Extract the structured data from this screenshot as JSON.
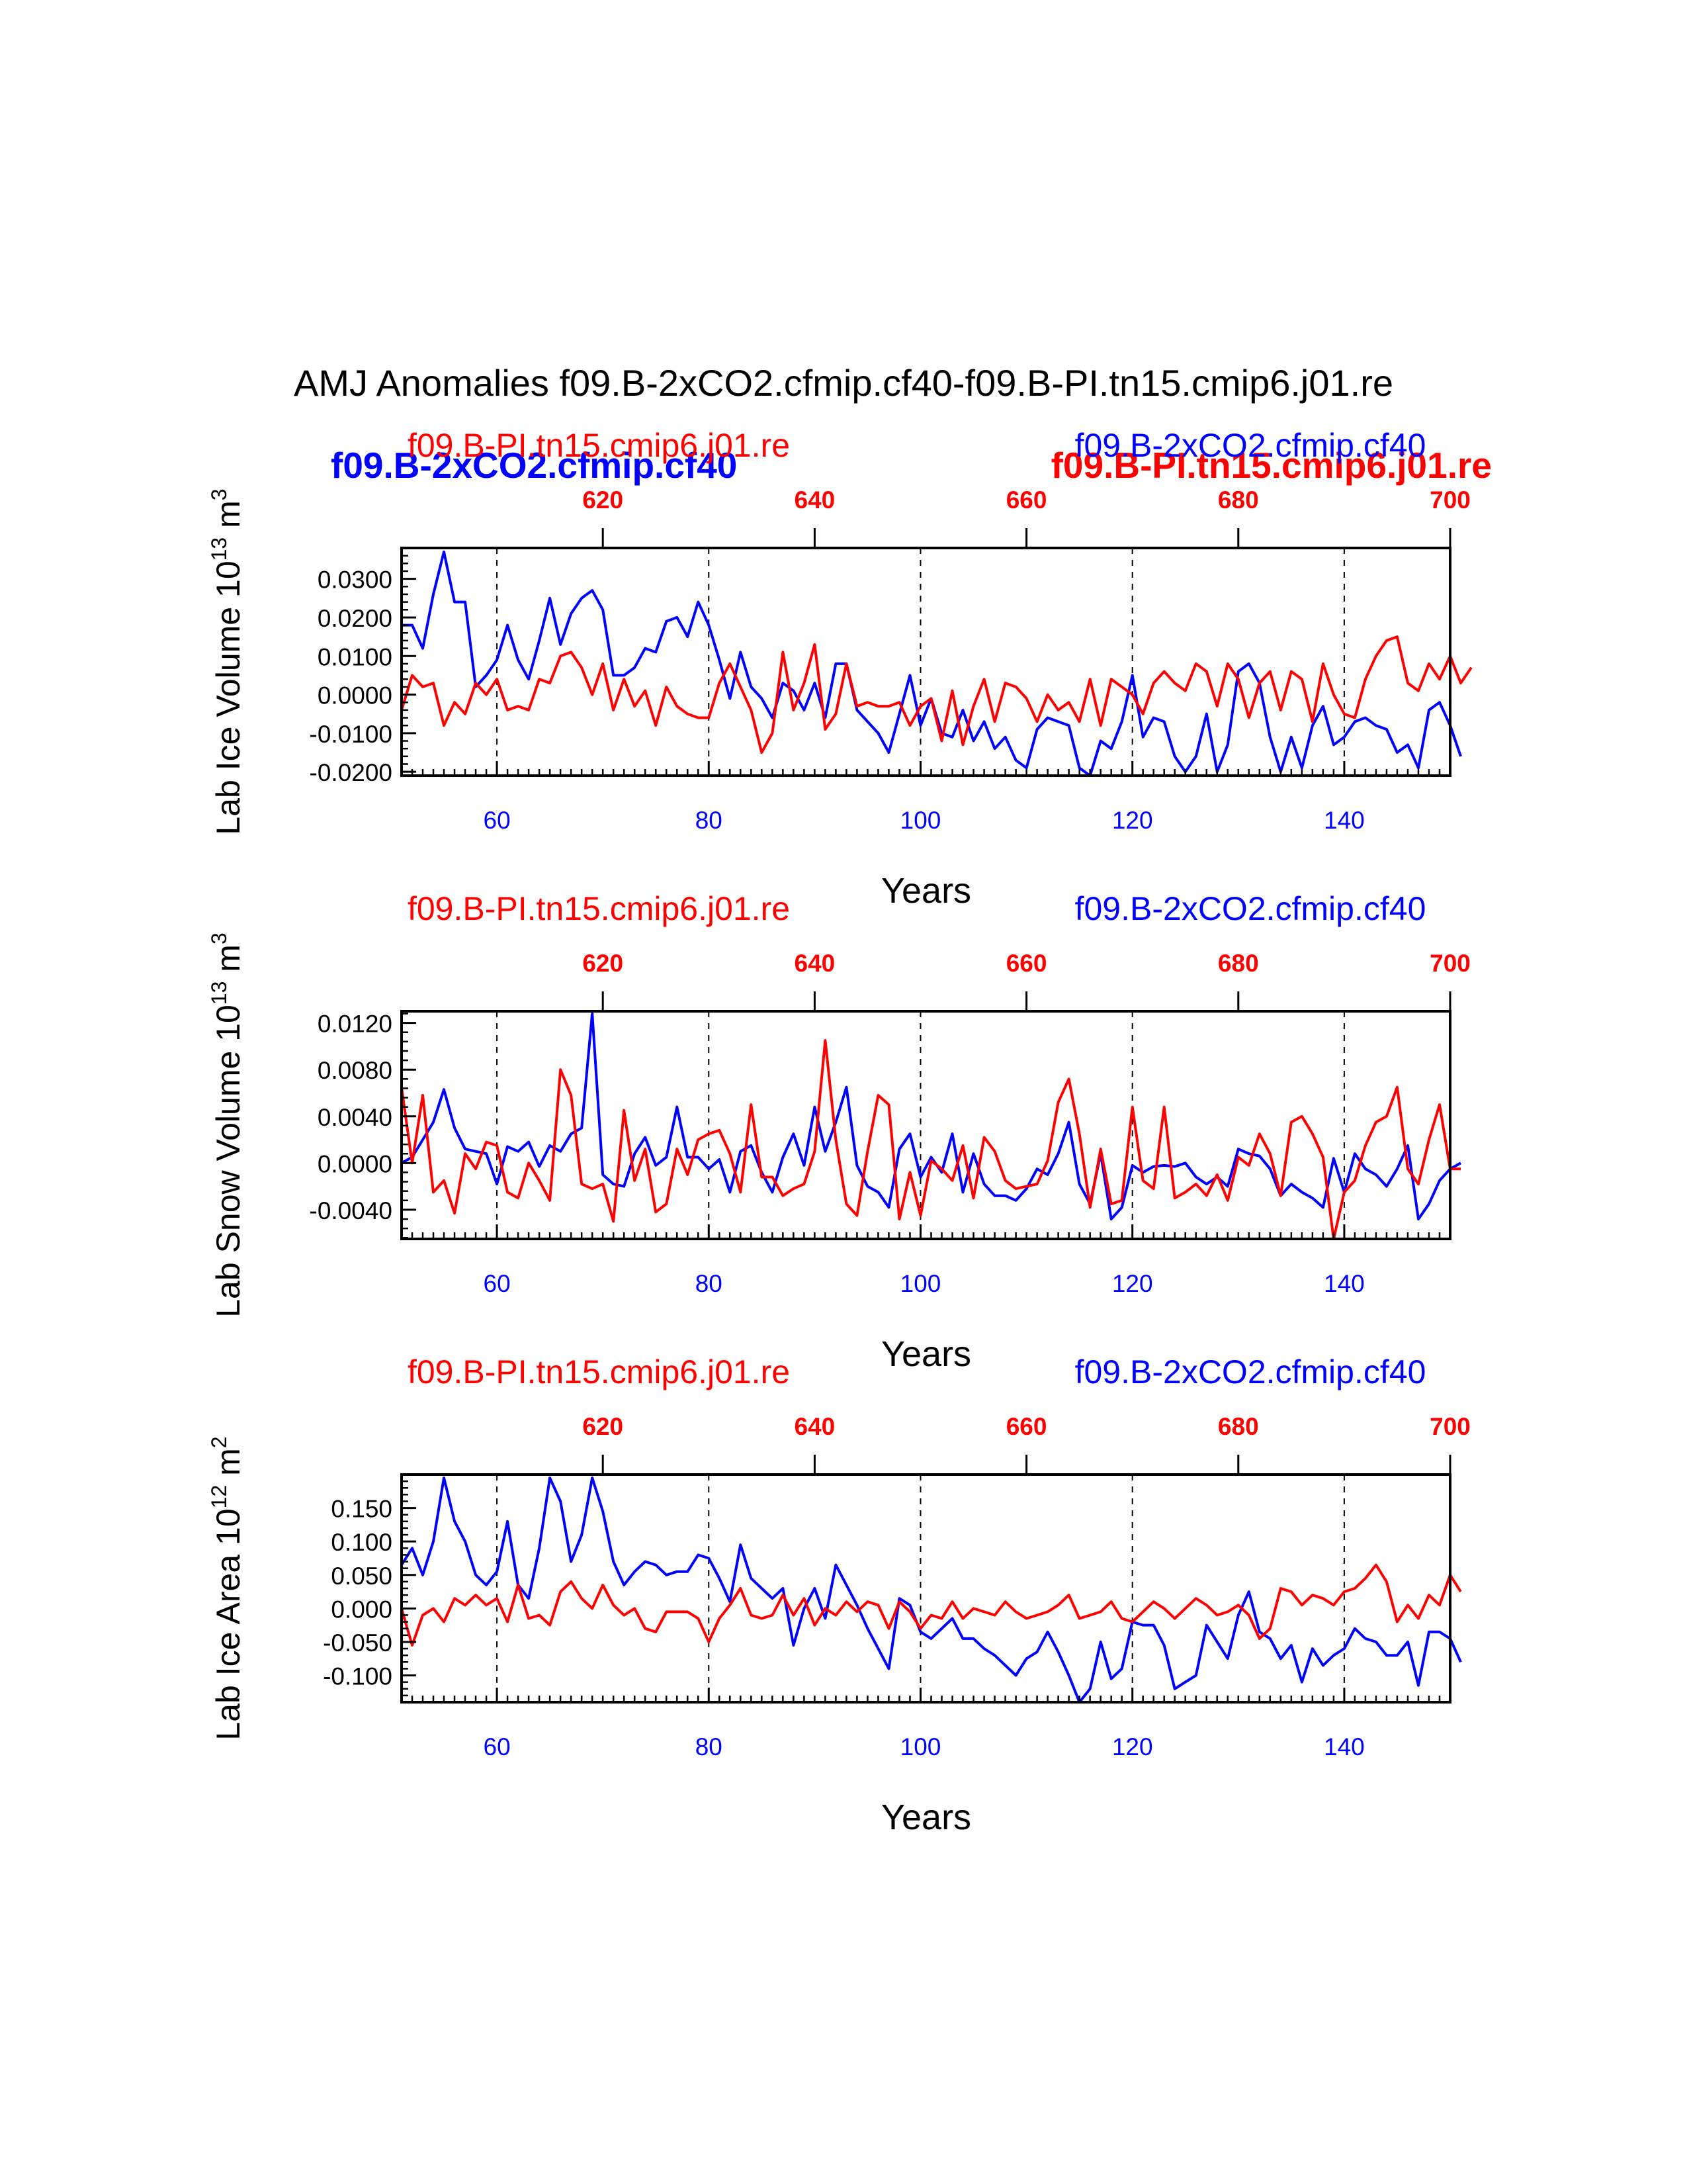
{
  "title": "AMJ Anomalies f09.B-2xCO2.cfmip.cf40-f09.B-PI.tn15.cmip6.j01.re",
  "colors": {
    "blue": "#0000ff",
    "red": "#ff0000",
    "black": "#000000"
  },
  "legend_overlay": {
    "blue": "f09.B-2xCO2.cfmip.cf40",
    "red": "f09.B-PI.tn15.cmip6.j01.re"
  },
  "chart_data": [
    {
      "type": "line",
      "id": "ice_volume",
      "ylabel_main": "Lab Ice Volume 10",
      "ylabel_exp": "13",
      "ylabel_unit": "m",
      "ylabel_unit_exp": "3",
      "xlabel": "Years",
      "subtitle_left": "f09.B-PI.tn15.cmip6.j01.re",
      "subtitle_right": "f09.B-2xCO2.cfmip.cf40",
      "xlim": [
        51,
        150
      ],
      "ylim": [
        -0.021,
        0.038
      ],
      "yticks": [
        -0.02,
        -0.01,
        0.0,
        0.01,
        0.02,
        0.03
      ],
      "yticklabels": [
        "-0.0200",
        "-0.0100",
        "0.0000",
        "0.0100",
        "0.0200",
        "0.0300"
      ],
      "xticks_bottom": [
        60,
        80,
        100,
        120,
        140
      ],
      "xticklabels_bottom": [
        "60",
        "80",
        "100",
        "120",
        "140"
      ],
      "xticks_top": [
        620,
        640,
        660,
        680,
        700
      ],
      "xticklabels_top": [
        "620",
        "640",
        "660",
        "680",
        "700"
      ],
      "top_offset": 550,
      "grid_x": [
        60,
        80,
        100,
        120,
        140
      ],
      "series": [
        {
          "name": "f09.B-2xCO2.cfmip.cf40",
          "color": "blue",
          "x_start": 51,
          "values": [
            0.018,
            0.018,
            0.012,
            0.026,
            0.037,
            0.024,
            0.024,
            0.002,
            0.005,
            0.009,
            0.018,
            0.009,
            0.004,
            0.014,
            0.025,
            0.013,
            0.021,
            0.025,
            0.027,
            0.022,
            0.005,
            0.005,
            0.007,
            0.012,
            0.011,
            0.019,
            0.02,
            0.015,
            0.024,
            0.018,
            0.009,
            -0.001,
            0.011,
            0.002,
            -0.001,
            -0.006,
            0.003,
            0.001,
            -0.004,
            0.003,
            -0.006,
            0.008,
            0.008,
            -0.004,
            -0.007,
            -0.01,
            -0.015,
            -0.005,
            0.005,
            -0.008,
            -0.001,
            -0.01,
            -0.011,
            -0.004,
            -0.012,
            -0.007,
            -0.014,
            -0.011,
            -0.017,
            -0.019,
            -0.009,
            -0.006,
            -0.007,
            -0.008,
            -0.019,
            -0.021,
            -0.012,
            -0.014,
            -0.007,
            0.005,
            -0.011,
            -0.006,
            -0.007,
            -0.016,
            -0.02,
            -0.016,
            -0.005,
            -0.02,
            -0.013,
            0.006,
            0.008,
            0.003,
            -0.011,
            -0.02,
            -0.011,
            -0.019,
            -0.008,
            -0.003,
            -0.013,
            -0.011,
            -0.007,
            -0.006,
            -0.008,
            -0.009,
            -0.015,
            -0.013,
            -0.019,
            -0.004,
            -0.002,
            -0.008,
            -0.016
          ]
        },
        {
          "name": "f09.B-PI.tn15.cmip6.j01.re",
          "color": "red",
          "x_start": 51,
          "values": [
            -0.004,
            0.005,
            0.002,
            0.003,
            -0.008,
            -0.002,
            -0.005,
            0.003,
            0.0,
            0.004,
            -0.004,
            -0.003,
            -0.004,
            0.004,
            0.003,
            0.01,
            0.011,
            0.007,
            0.0,
            0.008,
            -0.004,
            0.004,
            -0.003,
            0.001,
            -0.008,
            0.002,
            -0.003,
            -0.005,
            -0.006,
            -0.006,
            0.003,
            0.008,
            0.002,
            -0.004,
            -0.015,
            -0.01,
            0.011,
            -0.004,
            0.003,
            0.013,
            -0.009,
            -0.005,
            0.008,
            -0.003,
            -0.002,
            -0.003,
            -0.003,
            -0.002,
            -0.008,
            -0.003,
            -0.001,
            -0.012,
            0.001,
            -0.013,
            -0.003,
            0.004,
            -0.007,
            0.003,
            0.002,
            -0.001,
            -0.007,
            0.0,
            -0.004,
            -0.002,
            -0.007,
            0.004,
            -0.008,
            0.004,
            0.002,
            0.0,
            -0.005,
            0.003,
            0.006,
            0.003,
            0.001,
            0.008,
            0.006,
            -0.003,
            0.008,
            0.004,
            -0.006,
            0.003,
            0.006,
            -0.004,
            0.006,
            0.004,
            -0.007,
            0.008,
            0.0,
            -0.005,
            -0.006,
            0.004,
            0.01,
            0.014,
            0.015,
            0.003,
            0.001,
            0.008,
            0.004,
            0.01,
            0.003,
            0.007
          ]
        }
      ]
    },
    {
      "type": "line",
      "id": "snow_volume",
      "ylabel_main": "Lab Snow Volume 10",
      "ylabel_exp": "13",
      "ylabel_unit": "m",
      "ylabel_unit_exp": "3",
      "xlabel": "Years",
      "subtitle_left": "f09.B-PI.tn15.cmip6.j01.re",
      "subtitle_right": "f09.B-2xCO2.cfmip.cf40",
      "xlim": [
        51,
        150
      ],
      "ylim": [
        -0.0065,
        0.013
      ],
      "yticks": [
        -0.004,
        0.0,
        0.004,
        0.008,
        0.012
      ],
      "yticklabels": [
        "-0.0040",
        "0.0000",
        "0.0040",
        "0.0080",
        "0.0120"
      ],
      "xticks_bottom": [
        60,
        80,
        100,
        120,
        140
      ],
      "xticklabels_bottom": [
        "60",
        "80",
        "100",
        "120",
        "140"
      ],
      "xticks_top": [
        620,
        640,
        660,
        680,
        700
      ],
      "xticklabels_top": [
        "620",
        "640",
        "660",
        "680",
        "700"
      ],
      "top_offset": 550,
      "grid_x": [
        60,
        80,
        100,
        120,
        140
      ],
      "series": [
        {
          "name": "f09.B-2xCO2.cfmip.cf40",
          "color": "blue",
          "x_start": 51,
          "values": [
            0.0,
            0.0005,
            0.002,
            0.0035,
            0.0063,
            0.003,
            0.0012,
            0.001,
            0.0008,
            -0.0018,
            0.0014,
            0.001,
            0.0018,
            -0.0003,
            0.0015,
            0.001,
            0.0025,
            0.003,
            0.0128,
            -0.001,
            -0.0018,
            -0.002,
            0.0008,
            0.0022,
            -0.0002,
            0.0005,
            0.0048,
            0.0005,
            0.0005,
            -0.0005,
            0.0003,
            -0.0025,
            0.001,
            0.0015,
            -0.0008,
            -0.0025,
            0.0005,
            0.0025,
            -0.0002,
            0.0048,
            0.001,
            0.0035,
            0.0065,
            -0.0002,
            -0.002,
            -0.0025,
            -0.0038,
            0.0012,
            0.0025,
            -0.0012,
            0.0005,
            -0.0008,
            0.0025,
            -0.0025,
            0.0008,
            -0.0018,
            -0.0028,
            -0.0028,
            -0.0032,
            -0.0022,
            -0.0005,
            -0.001,
            0.0008,
            0.0035,
            -0.0018,
            -0.0035,
            0.0008,
            -0.0048,
            -0.0038,
            -0.0002,
            -0.0008,
            -0.0003,
            -0.0002,
            -0.0003,
            0.0,
            -0.0012,
            -0.0018,
            -0.0012,
            -0.002,
            0.0012,
            0.0008,
            0.0006,
            -0.0005,
            -0.0028,
            -0.0018,
            -0.0025,
            -0.003,
            -0.0038,
            0.0004,
            -0.0025,
            0.0008,
            -0.0005,
            -0.001,
            -0.002,
            -0.0005,
            0.0015,
            -0.0048,
            -0.0035,
            -0.0015,
            -0.0005,
            0.0
          ]
        },
        {
          "name": "f09.B-PI.tn15.cmip6.j01.re",
          "color": "red",
          "x_start": 51,
          "values": [
            0.0065,
            0.0,
            0.0058,
            -0.0025,
            -0.0015,
            -0.0043,
            0.0008,
            -0.0005,
            0.0018,
            0.0015,
            -0.0025,
            -0.003,
            0.0,
            -0.0015,
            -0.0032,
            0.008,
            0.0058,
            -0.0018,
            -0.0022,
            -0.0018,
            -0.005,
            0.0045,
            -0.0015,
            0.0012,
            -0.0042,
            -0.0035,
            0.0012,
            -0.001,
            0.002,
            0.0025,
            0.0028,
            0.0008,
            -0.0025,
            0.005,
            -0.0012,
            -0.0012,
            -0.0028,
            -0.0022,
            -0.0018,
            0.001,
            0.0105,
            0.002,
            -0.0035,
            -0.0045,
            0.001,
            0.0058,
            0.005,
            -0.0048,
            -0.0008,
            -0.0045,
            0.0002,
            -0.0005,
            -0.0015,
            0.0015,
            -0.003,
            0.0022,
            0.001,
            -0.0015,
            -0.0022,
            -0.002,
            -0.0018,
            0.0002,
            0.0052,
            0.0072,
            0.0025,
            -0.0038,
            0.0012,
            -0.0035,
            -0.0032,
            0.0048,
            -0.0015,
            -0.0022,
            0.0048,
            -0.003,
            -0.0025,
            -0.0018,
            -0.0028,
            -0.001,
            -0.0032,
            0.0005,
            -0.0002,
            0.0025,
            0.0008,
            -0.0028,
            0.0035,
            0.004,
            0.0025,
            0.0005,
            -0.0065,
            -0.0025,
            -0.0015,
            0.0015,
            0.0035,
            0.004,
            0.0065,
            -0.0005,
            -0.0018,
            0.002,
            0.005,
            -0.0005,
            -0.0005
          ]
        }
      ]
    },
    {
      "type": "line",
      "id": "ice_area",
      "ylabel_main": "Lab Ice Area 10",
      "ylabel_exp": "12",
      "ylabel_unit": "m",
      "ylabel_unit_exp": "2",
      "xlabel": "Years",
      "subtitle_left": "f09.B-PI.tn15.cmip6.j01.re",
      "subtitle_right": "f09.B-2xCO2.cfmip.cf40",
      "xlim": [
        51,
        150
      ],
      "ylim": [
        -0.14,
        0.2
      ],
      "yticks": [
        -0.1,
        -0.05,
        0.0,
        0.05,
        0.1,
        0.15
      ],
      "yticklabels": [
        "-0.100",
        "-0.050",
        "0.000",
        "0.050",
        "0.100",
        "0.150"
      ],
      "xticks_bottom": [
        60,
        80,
        100,
        120,
        140
      ],
      "xticklabels_bottom": [
        "60",
        "80",
        "100",
        "120",
        "140"
      ],
      "xticks_top": [
        620,
        640,
        660,
        680,
        700
      ],
      "xticklabels_top": [
        "620",
        "640",
        "660",
        "680",
        "700"
      ],
      "top_offset": 550,
      "grid_x": [
        60,
        80,
        100,
        120,
        140
      ],
      "series": [
        {
          "name": "f09.B-2xCO2.cfmip.cf40",
          "color": "blue",
          "x_start": 51,
          "values": [
            0.065,
            0.09,
            0.05,
            0.1,
            0.195,
            0.13,
            0.1,
            0.05,
            0.035,
            0.055,
            0.13,
            0.035,
            0.015,
            0.09,
            0.195,
            0.16,
            0.07,
            0.11,
            0.195,
            0.145,
            0.07,
            0.035,
            0.055,
            0.07,
            0.065,
            0.05,
            0.055,
            0.055,
            0.08,
            0.075,
            0.045,
            0.01,
            0.095,
            0.045,
            0.03,
            0.015,
            0.03,
            -0.055,
            0.0,
            0.03,
            -0.015,
            0.065,
            0.035,
            0.005,
            -0.03,
            -0.06,
            -0.09,
            0.015,
            0.005,
            -0.035,
            -0.045,
            -0.03,
            -0.015,
            -0.045,
            -0.045,
            -0.06,
            -0.07,
            -0.085,
            -0.1,
            -0.075,
            -0.065,
            -0.035,
            -0.065,
            -0.1,
            -0.14,
            -0.12,
            -0.05,
            -0.105,
            -0.09,
            -0.02,
            -0.025,
            -0.025,
            -0.055,
            -0.12,
            -0.11,
            -0.1,
            -0.025,
            -0.05,
            -0.075,
            -0.01,
            0.025,
            -0.035,
            -0.045,
            -0.075,
            -0.055,
            -0.11,
            -0.06,
            -0.085,
            -0.07,
            -0.06,
            -0.03,
            -0.045,
            -0.05,
            -0.07,
            -0.07,
            -0.05,
            -0.115,
            -0.035,
            -0.035,
            -0.045,
            -0.08
          ]
        },
        {
          "name": "f09.B-PI.tn15.cmip6.j01.re",
          "color": "red",
          "x_start": 51,
          "values": [
            0.0,
            -0.055,
            -0.01,
            0.0,
            -0.02,
            0.015,
            0.005,
            0.02,
            0.005,
            0.015,
            -0.02,
            0.035,
            -0.015,
            -0.01,
            -0.025,
            0.025,
            0.04,
            0.015,
            0.0,
            0.035,
            0.005,
            -0.01,
            0.0,
            -0.03,
            -0.035,
            -0.005,
            -0.005,
            -0.005,
            -0.015,
            -0.05,
            -0.015,
            0.005,
            0.03,
            -0.01,
            -0.015,
            -0.01,
            0.02,
            -0.01,
            0.015,
            -0.025,
            0.0,
            -0.01,
            0.01,
            -0.005,
            0.01,
            0.005,
            -0.03,
            0.01,
            -0.005,
            -0.03,
            -0.01,
            -0.015,
            0.01,
            -0.015,
            0.0,
            -0.005,
            -0.01,
            0.01,
            -0.005,
            -0.015,
            -0.01,
            -0.005,
            0.005,
            0.02,
            -0.015,
            -0.01,
            -0.005,
            0.01,
            -0.015,
            -0.02,
            -0.005,
            0.01,
            0.0,
            -0.015,
            0.0,
            0.015,
            0.005,
            -0.01,
            -0.005,
            0.005,
            -0.01,
            -0.045,
            -0.03,
            0.03,
            0.025,
            0.005,
            0.02,
            0.015,
            0.005,
            0.025,
            0.03,
            0.045,
            0.065,
            0.04,
            -0.02,
            0.005,
            -0.015,
            0.02,
            0.005,
            0.05,
            0.025
          ]
        }
      ]
    }
  ]
}
